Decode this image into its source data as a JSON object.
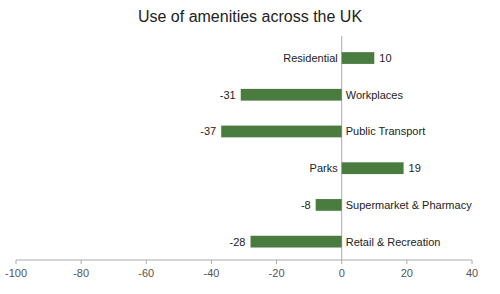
{
  "chart_data": {
    "type": "bar",
    "orientation": "horizontal",
    "title": "Use of amenities across the UK",
    "categories": [
      "Retail & Recreation",
      "Supermarket & Pharmacy",
      "Parks",
      "Public Transport",
      "Workplaces",
      "Residential"
    ],
    "values": [
      -28,
      -8,
      19,
      -37,
      -31,
      10
    ],
    "color": "#4a7c3f",
    "xlim": [
      -100,
      40
    ],
    "xticks": [
      -100,
      -80,
      -60,
      -40,
      -20,
      0,
      20,
      40
    ],
    "data_labels": true,
    "tick_labels": "x",
    "grid": false
  }
}
